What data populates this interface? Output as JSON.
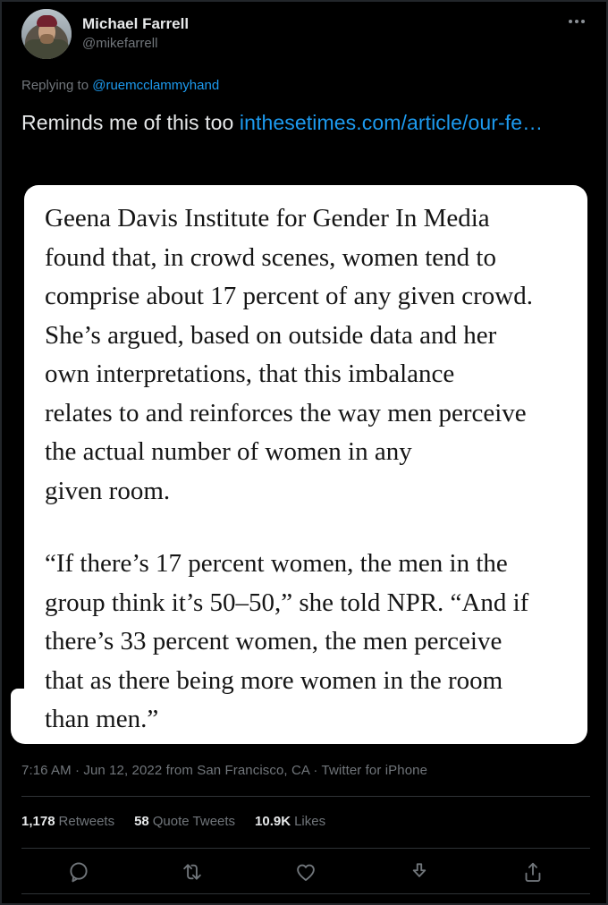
{
  "colors": {
    "background": "#000000",
    "text_primary": "#e7e9ea",
    "text_secondary": "#71767b",
    "link": "#1d9bf0",
    "card_background": "#ffffff",
    "card_text": "#151515",
    "divider": "#2f3336"
  },
  "header": {
    "name": "Michael Farrell",
    "handle": "@mikefarrell",
    "avatar": "profile-photo-man-red-beanie-winter",
    "more_icon": "more-ellipsis-icon"
  },
  "reply_context": {
    "prefix": "Replying to ",
    "mention": "@ruemcclammyhand"
  },
  "tweet": {
    "text": "Reminds me of this too ",
    "link_text": "inthesetimes.com/article/our-fe…"
  },
  "quote_image": {
    "paragraphs": [
      [
        "Geena Davis Institute for Gender In Media",
        "found that, in crowd scenes, women tend to",
        "comprise about 17 percent of any given crowd.",
        "She’s argued, based on outside data and her",
        "own interpretations, that this imbalance",
        "relates to and reinforces the way men perceive",
        "the actual number of women in any",
        "given room."
      ],
      [
        "“If there’s 17 percent women, the men in the",
        "group think it’s 50–50,” she told NPR. “And if",
        "there’s 33 percent women, the men perceive",
        "that as there being more women in the room",
        "than men.”"
      ]
    ]
  },
  "meta_line": "7:16 AM · Jun 12, 2022 from San Francisco, CA · Twitter for iPhone",
  "stats": [
    {
      "value": "1,178",
      "label": "Retweets"
    },
    {
      "value": "58",
      "label": "Quote Tweets"
    },
    {
      "value": "10.9K",
      "label": "Likes"
    }
  ],
  "actions": {
    "reply": "reply-bubble-icon",
    "retweet": "retweet-arrows-icon",
    "like": "heart-outline-icon",
    "download": "download-arrow-icon",
    "share": "share-up-arrow-icon"
  }
}
